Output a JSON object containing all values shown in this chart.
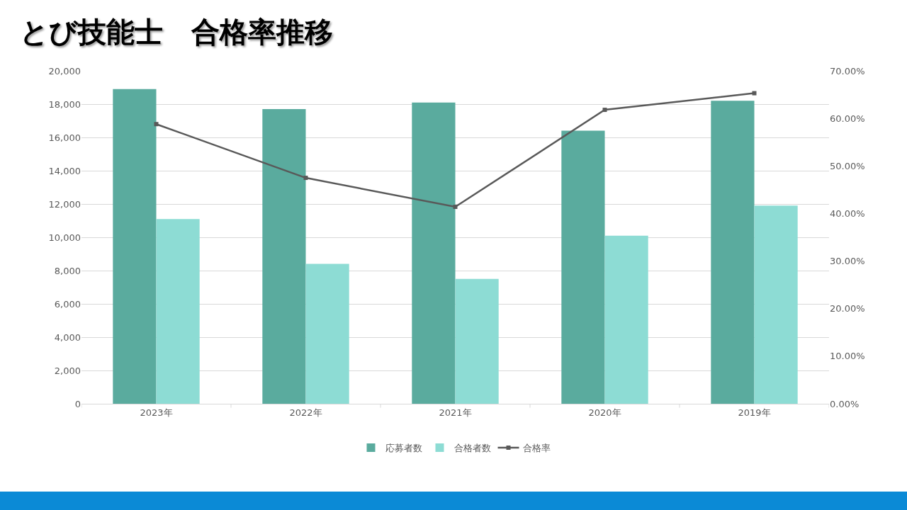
{
  "chart_data": {
    "type": "bar",
    "title": "とび技能士　合格率推移",
    "categories": [
      "2023年",
      "2022年",
      "2021年",
      "2020年",
      "2019年"
    ],
    "series": [
      {
        "name": "応募者数",
        "color": "#5aab9e",
        "values": [
          18900,
          17700,
          18100,
          16400,
          18200
        ]
      },
      {
        "name": "合格者数",
        "color": "#8ddcd4",
        "values": [
          11100,
          8400,
          7500,
          10100,
          11900
        ]
      },
      {
        "name": "合格率",
        "type": "line",
        "axis": "y2",
        "color": "#595959",
        "values": [
          58.8,
          47.5,
          41.4,
          61.8,
          65.3
        ]
      }
    ],
    "ylim": [
      0,
      20000
    ],
    "yticks": [
      0,
      {
        "value": 2000,
        "label": "2,000"
      },
      {
        "value": 4000,
        "label": "4,000"
      },
      {
        "value": 6000,
        "label": "6,000"
      },
      {
        "value": 8000,
        "label": "8,000"
      },
      {
        "value": 10000,
        "label": "10,000"
      },
      {
        "value": 12000,
        "label": "12,000"
      },
      {
        "value": 14000,
        "label": "14,000"
      },
      {
        "value": 16000,
        "label": "16,000"
      },
      {
        "value": 18000,
        "label": "18,000"
      },
      {
        "value": 20000,
        "label": "20,000"
      }
    ],
    "y2lim": [
      0,
      70
    ],
    "y2ticks": [
      {
        "value": 0,
        "label": "0.00%"
      },
      {
        "value": 10,
        "label": "10.00%"
      },
      {
        "value": 20,
        "label": "20.00%"
      },
      {
        "value": 30,
        "label": "30.00%"
      },
      {
        "value": 40,
        "label": "40.00%"
      },
      {
        "value": 50,
        "label": "50.00%"
      },
      {
        "value": 60,
        "label": "60.00%"
      },
      {
        "value": 70,
        "label": "70.00%"
      }
    ],
    "grid": "y",
    "legend": "bottom",
    "marker": "square",
    "line_style": "solid"
  }
}
